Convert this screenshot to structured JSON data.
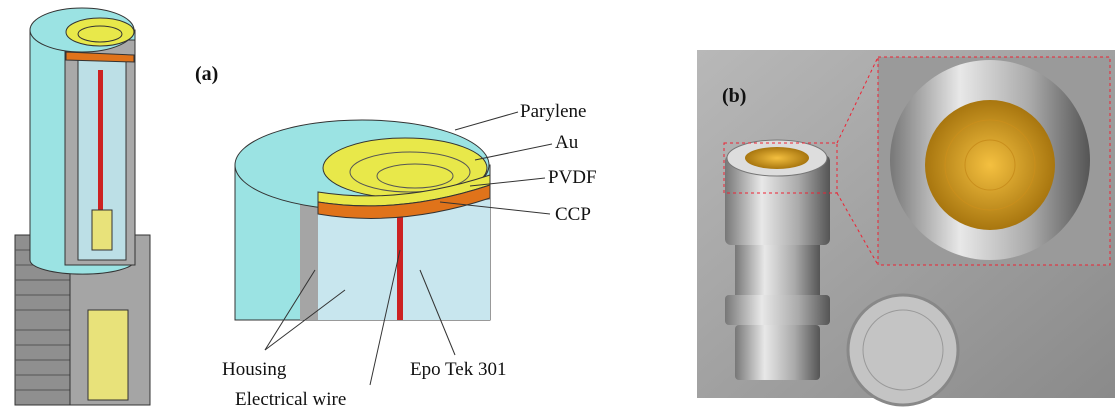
{
  "panel_a": {
    "label": "(a)",
    "callouts": [
      "Parylene",
      "Au",
      "PVDF",
      "CCP",
      "Housing",
      "Epo Tek 301",
      "Electrical wire"
    ]
  },
  "panel_b": {
    "label": "(b)"
  }
}
